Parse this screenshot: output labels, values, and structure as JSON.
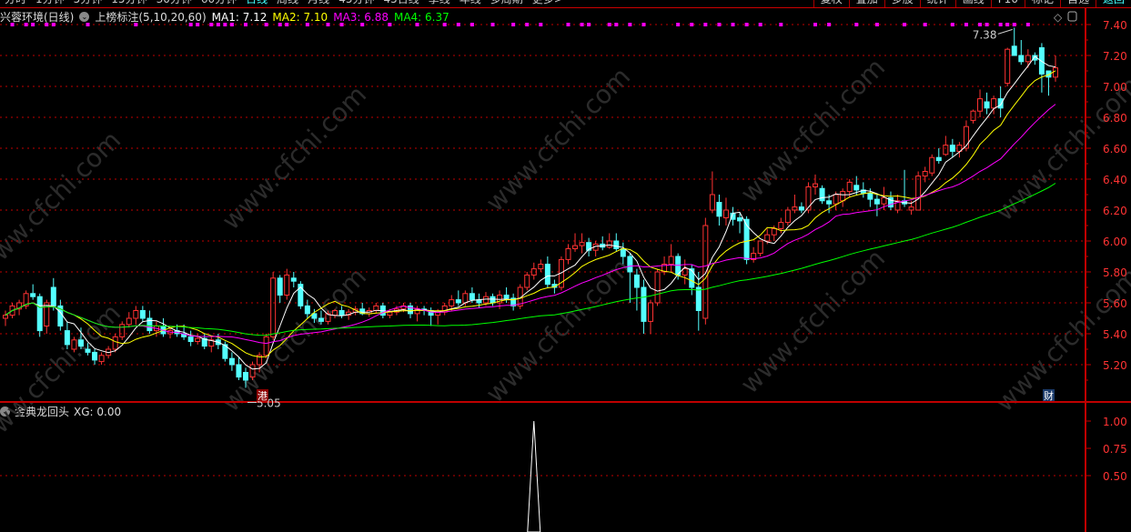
{
  "toolbar": {
    "left": [
      "分时",
      "1分钟",
      "5分钟",
      "15分钟",
      "30分钟",
      "60分钟",
      "日线",
      "周线",
      "月线",
      "45分钟",
      "45日线",
      "季线",
      "年线",
      "多周期",
      "更多>"
    ],
    "active": "日线",
    "right": [
      "复权",
      "叠加",
      "多股",
      "统计",
      "画线",
      "F10",
      "标记",
      "自选",
      "返回"
    ]
  },
  "legend": {
    "stock": "兴蓉环境(日线)",
    "indicator": "上榜标注(5,10,20,60)",
    "ma1": "MA1: 7.12",
    "ma2": "MA2: 7.10",
    "ma3": "MA3: 6.88",
    "ma4": "MA4: 6.37"
  },
  "colors": {
    "up": "#ff3232",
    "down": "#54ffff",
    "ma1": "#ffffff",
    "ma2": "#ffff00",
    "ma3": "#ff00ff",
    "ma4": "#00ff00",
    "grid": "#c00000",
    "marker": "#ff00ff"
  },
  "icons": [
    "diamond-icon",
    "window-toggle-icon",
    "chevron-down-icon"
  ],
  "watermark": "www.cfchi.com",
  "annotations": {
    "high": "7.38",
    "low": "5.05",
    "badge_hk": "港",
    "badge_fin": "财"
  },
  "indicator_panel": {
    "title": "金典龙回头",
    "value": "XG: 0.00",
    "ticks": [
      "1.00",
      "0.75",
      "0.50"
    ]
  },
  "chart_data": {
    "type": "candlestick",
    "ylim": [
      5.0,
      7.45
    ],
    "yticks": [
      "7.40",
      "7.20",
      "7.00",
      "6.80",
      "6.60",
      "6.40",
      "6.20",
      "6.00",
      "5.80",
      "5.60",
      "5.40",
      "5.20"
    ],
    "ma_periods": [
      5,
      10,
      20,
      60
    ],
    "ohlc": [
      [
        5.5,
        5.55,
        5.45,
        5.52
      ],
      [
        5.52,
        5.6,
        5.5,
        5.58
      ],
      [
        5.56,
        5.62,
        5.52,
        5.6
      ],
      [
        5.58,
        5.68,
        5.56,
        5.66
      ],
      [
        5.66,
        5.72,
        5.62,
        5.64
      ],
      [
        5.64,
        5.66,
        5.38,
        5.42
      ],
      [
        5.45,
        5.62,
        5.4,
        5.6
      ],
      [
        5.7,
        5.76,
        5.55,
        5.58
      ],
      [
        5.58,
        5.62,
        5.42,
        5.45
      ],
      [
        5.42,
        5.48,
        5.3,
        5.33
      ],
      [
        5.3,
        5.38,
        5.28,
        5.36
      ],
      [
        5.36,
        5.44,
        5.3,
        5.32
      ],
      [
        5.3,
        5.34,
        5.26,
        5.28
      ],
      [
        5.28,
        5.3,
        5.2,
        5.23
      ],
      [
        5.22,
        5.28,
        5.2,
        5.26
      ],
      [
        5.26,
        5.32,
        5.24,
        5.3
      ],
      [
        5.3,
        5.4,
        5.28,
        5.38
      ],
      [
        5.38,
        5.48,
        5.36,
        5.46
      ],
      [
        5.46,
        5.54,
        5.44,
        5.5
      ],
      [
        5.5,
        5.58,
        5.46,
        5.55
      ],
      [
        5.55,
        5.58,
        5.48,
        5.5
      ],
      [
        5.5,
        5.55,
        5.4,
        5.42
      ],
      [
        5.42,
        5.48,
        5.38,
        5.45
      ],
      [
        5.45,
        5.5,
        5.38,
        5.4
      ],
      [
        5.4,
        5.45,
        5.37,
        5.42
      ],
      [
        5.42,
        5.46,
        5.38,
        5.4
      ],
      [
        5.4,
        5.46,
        5.36,
        5.38
      ],
      [
        5.38,
        5.42,
        5.32,
        5.35
      ],
      [
        5.35,
        5.4,
        5.33,
        5.37
      ],
      [
        5.37,
        5.4,
        5.3,
        5.32
      ],
      [
        5.32,
        5.38,
        5.28,
        5.36
      ],
      [
        5.36,
        5.4,
        5.3,
        5.33
      ],
      [
        5.33,
        5.35,
        5.22,
        5.24
      ],
      [
        5.24,
        5.28,
        5.16,
        5.2
      ],
      [
        5.2,
        5.25,
        5.1,
        5.12
      ],
      [
        5.15,
        5.18,
        5.05,
        5.1
      ],
      [
        5.12,
        5.22,
        5.1,
        5.2
      ],
      [
        5.2,
        5.28,
        5.15,
        5.26
      ],
      [
        5.26,
        5.4,
        5.24,
        5.38
      ],
      [
        5.38,
        5.8,
        5.36,
        5.76
      ],
      [
        5.76,
        5.78,
        5.6,
        5.65
      ],
      [
        5.65,
        5.82,
        5.62,
        5.78
      ],
      [
        5.76,
        5.8,
        5.7,
        5.74
      ],
      [
        5.72,
        5.74,
        5.56,
        5.58
      ],
      [
        5.58,
        5.62,
        5.5,
        5.53
      ],
      [
        5.53,
        5.56,
        5.47,
        5.5
      ],
      [
        5.5,
        5.55,
        5.46,
        5.48
      ],
      [
        5.48,
        5.55,
        5.46,
        5.53
      ],
      [
        5.52,
        5.56,
        5.5,
        5.55
      ],
      [
        5.55,
        5.58,
        5.5,
        5.52
      ],
      [
        5.52,
        5.56,
        5.49,
        5.54
      ],
      [
        5.54,
        5.58,
        5.52,
        5.56
      ],
      [
        5.56,
        5.6,
        5.52,
        5.53
      ],
      [
        5.53,
        5.57,
        5.51,
        5.55
      ],
      [
        5.55,
        5.6,
        5.53,
        5.58
      ],
      [
        5.58,
        5.6,
        5.5,
        5.52
      ],
      [
        5.52,
        5.56,
        5.5,
        5.54
      ],
      [
        5.54,
        5.58,
        5.52,
        5.56
      ],
      [
        5.56,
        5.6,
        5.54,
        5.58
      ],
      [
        5.58,
        5.6,
        5.5,
        5.53
      ],
      [
        5.53,
        5.58,
        5.48,
        5.56
      ],
      [
        5.56,
        5.58,
        5.52,
        5.55
      ],
      [
        5.55,
        5.57,
        5.45,
        5.52
      ],
      [
        5.52,
        5.56,
        5.46,
        5.54
      ],
      [
        5.54,
        5.6,
        5.52,
        5.58
      ],
      [
        5.58,
        5.65,
        5.55,
        5.62
      ],
      [
        5.62,
        5.68,
        5.58,
        5.6
      ],
      [
        5.6,
        5.68,
        5.58,
        5.66
      ],
      [
        5.66,
        5.7,
        5.6,
        5.62
      ],
      [
        5.62,
        5.66,
        5.57,
        5.6
      ],
      [
        5.6,
        5.67,
        5.58,
        5.64
      ],
      [
        5.64,
        5.66,
        5.58,
        5.6
      ],
      [
        5.6,
        5.68,
        5.56,
        5.65
      ],
      [
        5.65,
        5.7,
        5.6,
        5.63
      ],
      [
        5.63,
        5.66,
        5.55,
        5.58
      ],
      [
        5.58,
        5.72,
        5.56,
        5.7
      ],
      [
        5.7,
        5.8,
        5.68,
        5.78
      ],
      [
        5.78,
        5.86,
        5.75,
        5.82
      ],
      [
        5.82,
        5.88,
        5.8,
        5.85
      ],
      [
        5.85,
        5.9,
        5.7,
        5.72
      ],
      [
        5.72,
        5.75,
        5.66,
        5.7
      ],
      [
        5.7,
        5.9,
        5.68,
        5.88
      ],
      [
        5.88,
        5.98,
        5.85,
        5.95
      ],
      [
        5.95,
        6.05,
        5.93,
        5.97
      ],
      [
        5.97,
        6.05,
        5.92,
        5.99
      ],
      [
        5.99,
        6.02,
        5.9,
        5.94
      ],
      [
        5.94,
        6.0,
        5.9,
        5.98
      ],
      [
        5.98,
        6.03,
        5.94,
        5.96
      ],
      [
        5.96,
        6.05,
        5.95,
        6.0
      ],
      [
        6.0,
        6.05,
        5.93,
        5.95
      ],
      [
        5.95,
        5.99,
        5.85,
        5.9
      ],
      [
        5.9,
        5.92,
        5.6,
        5.8
      ],
      [
        5.78,
        5.82,
        5.55,
        5.7
      ],
      [
        5.7,
        5.75,
        5.4,
        5.48
      ],
      [
        5.48,
        5.62,
        5.4,
        5.6
      ],
      [
        5.6,
        5.82,
        5.58,
        5.8
      ],
      [
        5.8,
        5.9,
        5.78,
        5.85
      ],
      [
        5.85,
        5.98,
        5.8,
        5.9
      ],
      [
        5.9,
        5.92,
        5.75,
        5.78
      ],
      [
        5.78,
        5.88,
        5.72,
        5.82
      ],
      [
        5.82,
        5.85,
        5.65,
        5.7
      ],
      [
        5.7,
        5.8,
        5.42,
        5.55
      ],
      [
        5.5,
        6.15,
        5.46,
        6.1
      ],
      [
        6.2,
        6.45,
        6.18,
        6.3
      ],
      [
        6.25,
        6.3,
        6.1,
        6.16
      ],
      [
        6.15,
        6.28,
        6.1,
        6.2
      ],
      [
        6.18,
        6.22,
        6.1,
        6.14
      ],
      [
        6.15,
        6.18,
        6.05,
        6.13
      ],
      [
        6.14,
        6.16,
        5.85,
        5.88
      ],
      [
        5.88,
        5.96,
        5.86,
        5.92
      ],
      [
        5.92,
        6.0,
        5.9,
        6.0
      ],
      [
        6.0,
        6.08,
        5.98,
        6.04
      ],
      [
        6.04,
        6.1,
        6.0,
        6.08
      ],
      [
        6.08,
        6.15,
        6.05,
        6.12
      ],
      [
        6.12,
        6.22,
        6.1,
        6.2
      ],
      [
        6.2,
        6.3,
        6.18,
        6.22
      ],
      [
        6.22,
        6.25,
        6.18,
        6.2
      ],
      [
        6.2,
        6.38,
        6.18,
        6.35
      ],
      [
        6.35,
        6.43,
        6.3,
        6.37
      ],
      [
        6.34,
        6.36,
        6.24,
        6.26
      ],
      [
        6.26,
        6.3,
        6.18,
        6.24
      ],
      [
        6.24,
        6.32,
        6.2,
        6.3
      ],
      [
        6.26,
        6.34,
        6.22,
        6.32
      ],
      [
        6.32,
        6.4,
        6.28,
        6.38
      ],
      [
        6.36,
        6.42,
        6.3,
        6.33
      ],
      [
        6.33,
        6.38,
        6.28,
        6.31
      ],
      [
        6.31,
        6.34,
        6.22,
        6.27
      ],
      [
        6.27,
        6.3,
        6.16,
        6.24
      ],
      [
        6.24,
        6.35,
        6.2,
        6.28
      ],
      [
        6.28,
        6.32,
        6.2,
        6.22
      ],
      [
        6.2,
        6.3,
        6.18,
        6.26
      ],
      [
        6.26,
        6.46,
        6.22,
        6.24
      ],
      [
        6.2,
        6.26,
        6.17,
        6.22
      ],
      [
        6.2,
        6.45,
        6.2,
        6.42
      ],
      [
        6.42,
        6.48,
        6.38,
        6.45
      ],
      [
        6.44,
        6.56,
        6.42,
        6.54
      ],
      [
        6.54,
        6.6,
        6.5,
        6.52
      ],
      [
        6.56,
        6.68,
        6.55,
        6.62
      ],
      [
        6.62,
        6.66,
        6.54,
        6.58
      ],
      [
        6.58,
        6.64,
        6.54,
        6.62
      ],
      [
        6.6,
        6.78,
        6.58,
        6.74
      ],
      [
        6.78,
        6.85,
        6.76,
        6.84
      ],
      [
        6.84,
        6.98,
        6.8,
        6.92
      ],
      [
        6.9,
        6.96,
        6.82,
        6.86
      ],
      [
        6.86,
        6.94,
        6.82,
        6.92
      ],
      [
        6.92,
        7.0,
        6.8,
        6.86
      ],
      [
        7.02,
        7.25,
        7.0,
        7.24
      ],
      [
        7.26,
        7.38,
        7.2,
        7.2
      ],
      [
        7.2,
        7.3,
        7.14,
        7.16
      ],
      [
        7.16,
        7.24,
        7.12,
        7.2
      ],
      [
        7.2,
        7.22,
        7.14,
        7.17
      ],
      [
        7.25,
        7.28,
        6.96,
        7.08
      ],
      [
        7.1,
        7.1,
        6.94,
        7.06
      ],
      [
        7.06,
        7.2,
        7.03,
        7.12
      ]
    ],
    "top_markers": [
      1,
      3,
      4,
      6,
      7,
      12,
      19,
      27,
      28,
      30,
      31,
      32,
      33,
      35,
      38,
      40,
      41,
      44,
      47,
      49,
      52,
      56,
      60,
      64,
      66,
      68,
      71,
      74,
      76,
      78,
      82,
      84,
      85,
      88,
      89,
      91,
      93,
      98,
      100,
      102,
      104,
      106,
      108,
      110,
      113,
      118,
      120,
      124,
      127,
      131,
      134,
      138,
      140,
      142,
      143,
      145,
      146,
      147,
      149
    ],
    "xg_signal_index": 77,
    "xg_ylim": [
      0,
      1.0
    ]
  }
}
